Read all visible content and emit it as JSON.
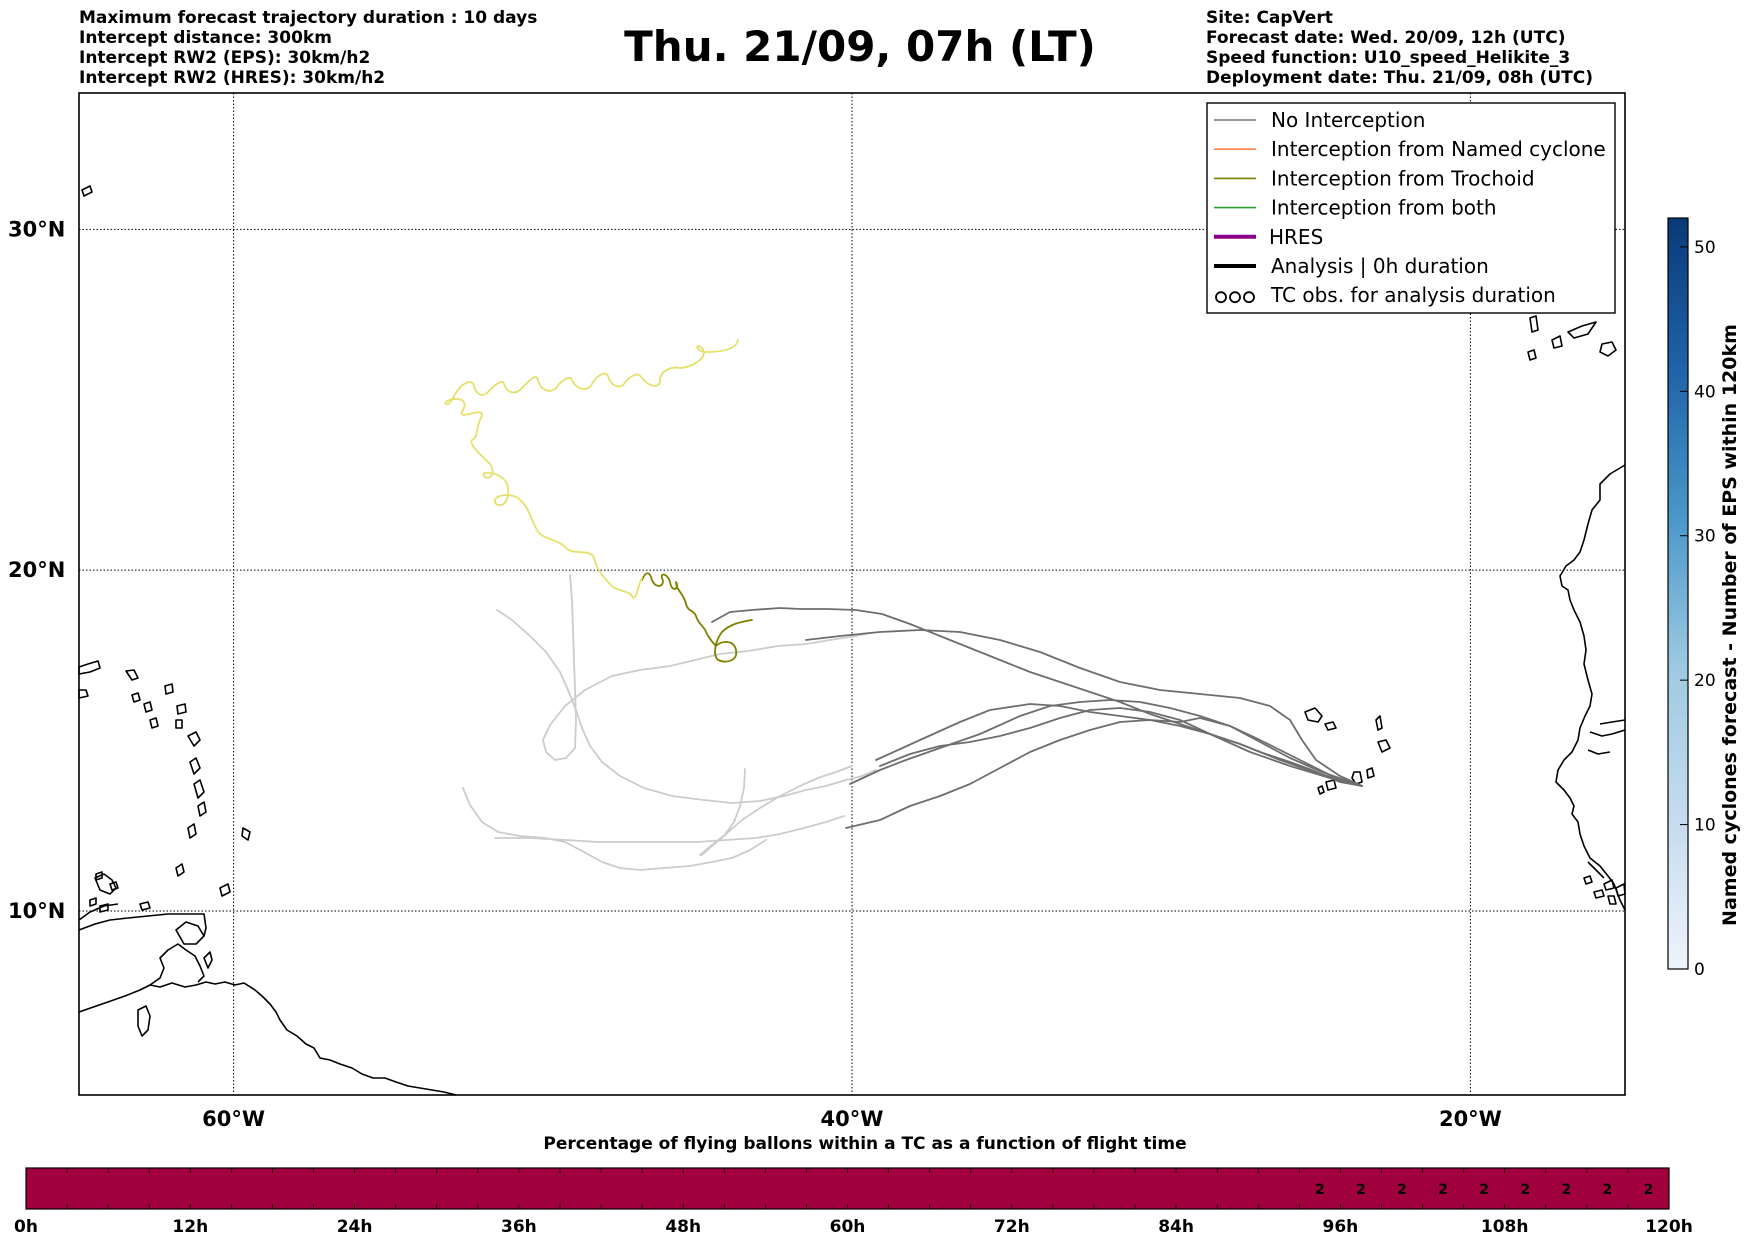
{
  "header_left": [
    "Maximum forecast trajectory duration : 10 days",
    "Intercept distance: 300km",
    "Intercept RW2 (EPS):  30km/h2",
    "Intercept RW2 (HRES): 30km/h2"
  ],
  "title": "Thu. 21/09, 07h (LT)",
  "header_right": [
    "Site: CapVert",
    "Forecast date: Wed. 20/09, 12h (UTC)",
    "Speed function: U10_speed_Helikite_3",
    "Deployment date: Thu. 21/09, 08h (UTC)"
  ],
  "map": {
    "lat_range": [
      4.6,
      34.0
    ],
    "lon_range": [
      -65.0,
      -15.0
    ],
    "lat_grid": [
      10,
      20,
      30
    ],
    "lon_grid": [
      -60,
      -40,
      -20
    ],
    "lat_labels": [
      "10°N",
      "20°N",
      "30°N"
    ],
    "lon_labels": [
      "60°W",
      "40°W",
      "20°W"
    ]
  },
  "legend": [
    {
      "label": "No Interception",
      "color": "#777777",
      "style": "thin"
    },
    {
      "label": "Interception from Named cyclone",
      "color": "#ff7f50",
      "style": "thin"
    },
    {
      "label": "Interception from Trochoid",
      "color": "#808000",
      "style": "thin"
    },
    {
      "label": "Interception from both",
      "color": "#2ca02c",
      "style": "thin"
    },
    {
      "label": "HRES",
      "color": "#8b008b",
      "style": "thick"
    },
    {
      "label": "Analysis | 0h duration",
      "color": "#000000",
      "style": "thick"
    },
    {
      "label": "TC obs. for analysis duration",
      "color": "#000000",
      "style": "tc"
    }
  ],
  "colorbar": {
    "label": "Named cyclones forecast - Number of EPS within 120km",
    "min": 0,
    "max": 52,
    "ticks": [
      "0",
      "10",
      "20",
      "30",
      "40",
      "50"
    ],
    "tick_values": [
      0,
      10,
      20,
      30,
      40,
      50
    ]
  },
  "bottom_bar": {
    "title": "Percentage of flying ballons within a TC as a function of flight time",
    "hour_labels": [
      "0h",
      "12h",
      "24h",
      "36h",
      "48h",
      "60h",
      "72h",
      "84h",
      "96h",
      "108h",
      "120h"
    ],
    "fill_color": "#a0003c",
    "cell_labels": [
      "2",
      "2",
      "2",
      "2",
      "2",
      "2",
      "2",
      "2",
      "2"
    ],
    "labeled_from_hour": 93,
    "cell_hours": 3
  },
  "colors": {
    "eps_no_interception": "#6e6e6e",
    "eps_light": "#cccccc",
    "trochoid": "#808000",
    "trajectory_yellow": "#e4e06a"
  }
}
